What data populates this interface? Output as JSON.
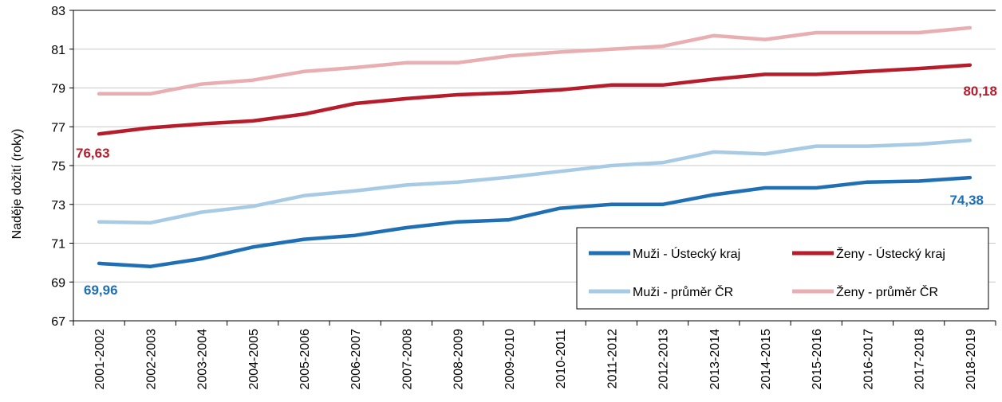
{
  "chart_data": {
    "type": "line",
    "ylabel": "Naděje dožití (roky)",
    "ylim": [
      67,
      83
    ],
    "yticks": [
      "67",
      "69",
      "71",
      "73",
      "75",
      "77",
      "79",
      "81",
      "83"
    ],
    "grid": "horizontal",
    "legend_position": "bottom-right",
    "categories": [
      "2001-2002",
      "2002-2003",
      "2003-2004",
      "2004-2005",
      "2005-2006",
      "2006-2007",
      "2007-2008",
      "2008-2009",
      "2009-2010",
      "2010-2011",
      "2011-2012",
      "2012-2013",
      "2013-2014",
      "2014-2015",
      "2015-2016",
      "2016-2017",
      "2017-2018",
      "2018-2019"
    ],
    "series": [
      {
        "name": "Muži - Ústecký kraj",
        "color": "#1f6fb4",
        "values": [
          69.96,
          69.8,
          70.2,
          70.8,
          71.2,
          71.4,
          71.8,
          72.1,
          72.2,
          72.8,
          73.0,
          73.0,
          73.5,
          73.85,
          73.85,
          74.15,
          74.2,
          74.38
        ]
      },
      {
        "name": "Ženy - Ústecký kraj",
        "color": "#b71c2b",
        "values": [
          76.63,
          76.95,
          77.15,
          77.3,
          77.65,
          78.2,
          78.45,
          78.65,
          78.75,
          78.9,
          79.15,
          79.15,
          79.45,
          79.7,
          79.7,
          79.85,
          80.0,
          80.18
        ]
      },
      {
        "name": "Muži - průměr ČR",
        "color": "#a7cbe4",
        "values": [
          72.1,
          72.05,
          72.6,
          72.9,
          73.45,
          73.7,
          74.0,
          74.15,
          74.4,
          74.7,
          75.0,
          75.15,
          75.7,
          75.6,
          76.0,
          76.0,
          76.1,
          76.3
        ]
      },
      {
        "name": "Ženy - průměr ČR",
        "color": "#e8aeb1",
        "values": [
          78.7,
          78.7,
          79.2,
          79.4,
          79.85,
          80.05,
          80.3,
          80.3,
          80.65,
          80.85,
          81.0,
          81.15,
          81.7,
          81.5,
          81.85,
          81.85,
          81.85,
          82.1
        ]
      }
    ],
    "data_labels": [
      {
        "text": "69,96",
        "color": "#1f6fb4"
      },
      {
        "text": "74,38",
        "color": "#1f6fb4"
      },
      {
        "text": "76,63",
        "color": "#b71c2b"
      },
      {
        "text": "80,18",
        "color": "#b71c2b"
      }
    ]
  }
}
